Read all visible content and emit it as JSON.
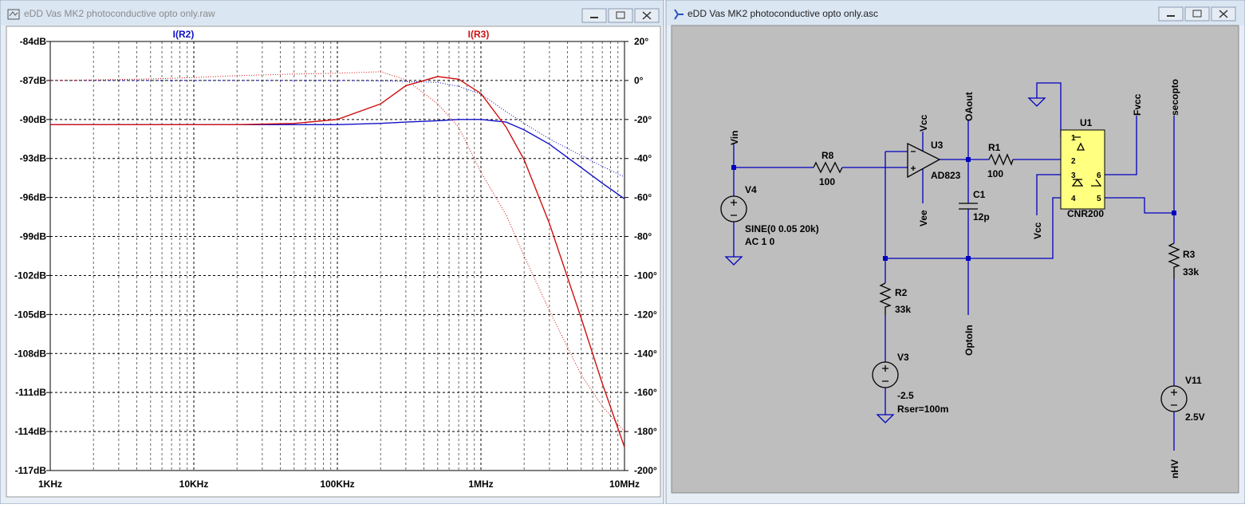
{
  "windows": {
    "plot_title": "eDD Vas MK2 photoconductive opto only.raw",
    "schematic_title": "eDD Vas MK2 photoconductive opto only.asc"
  },
  "chart_data": {
    "type": "line",
    "log_x": true,
    "grid": true,
    "x": [
      1000,
      2000,
      5000,
      10000,
      20000,
      50000,
      100000,
      200000,
      300000,
      500000,
      700000,
      1000000,
      1500000,
      2000000,
      3000000,
      5000000,
      7000000,
      10000000
    ],
    "xlim": [
      1000,
      10000000
    ],
    "xticks": [
      {
        "value": 1000,
        "label": "1KHz"
      },
      {
        "value": 10000,
        "label": "10KHz"
      },
      {
        "value": 100000,
        "label": "100KHz"
      },
      {
        "value": 1000000,
        "label": "1MHz"
      },
      {
        "value": 10000000,
        "label": "10MHz"
      }
    ],
    "ylim": [
      -117,
      -84
    ],
    "yticks": [
      {
        "value": -84,
        "label": "-84dB"
      },
      {
        "value": -87,
        "label": "-87dB"
      },
      {
        "value": -90,
        "label": "-90dB"
      },
      {
        "value": -93,
        "label": "-93dB"
      },
      {
        "value": -96,
        "label": "-96dB"
      },
      {
        "value": -99,
        "label": "-99dB"
      },
      {
        "value": -102,
        "label": "-102dB"
      },
      {
        "value": -105,
        "label": "-105dB"
      },
      {
        "value": -108,
        "label": "-108dB"
      },
      {
        "value": -111,
        "label": "-111dB"
      },
      {
        "value": -114,
        "label": "-114dB"
      },
      {
        "value": -117,
        "label": "-117dB"
      }
    ],
    "y2lim": [
      -200,
      20
    ],
    "y2ticks": [
      {
        "value": 20,
        "label": "20°"
      },
      {
        "value": 0,
        "label": "0°"
      },
      {
        "value": -20,
        "label": "-20°"
      },
      {
        "value": -40,
        "label": "-40°"
      },
      {
        "value": -60,
        "label": "-60°"
      },
      {
        "value": -80,
        "label": "-80°"
      },
      {
        "value": -100,
        "label": "-100°"
      },
      {
        "value": -120,
        "label": "-120°"
      },
      {
        "value": -140,
        "label": "-140°"
      },
      {
        "value": -160,
        "label": "-160°"
      },
      {
        "value": -180,
        "label": "-180°"
      },
      {
        "value": -200,
        "label": "-200°"
      }
    ],
    "series": [
      {
        "name": "I(R2)",
        "color": "#1010c8",
        "values": [
          -90.4,
          -90.4,
          -90.4,
          -90.4,
          -90.4,
          -90.4,
          -90.4,
          -90.3,
          -90.2,
          -90.1,
          -90.0,
          -90.0,
          -90.2,
          -90.8,
          -91.9,
          -93.7,
          -94.9,
          -96.1
        ]
      },
      {
        "name": "I(R3)",
        "color": "#d01010",
        "values": [
          -90.4,
          -90.4,
          -90.4,
          -90.4,
          -90.4,
          -90.3,
          -90.0,
          -88.8,
          -87.4,
          -86.7,
          -86.9,
          -88.0,
          -90.6,
          -93.1,
          -98.0,
          -105.3,
          -110.3,
          -115.2
        ]
      },
      {
        "color": "#1010c8",
        "axis": "y2",
        "style": "dotted",
        "values": [
          0,
          0,
          0,
          0,
          0,
          0,
          0,
          -0.2,
          -0.5,
          -1,
          -3,
          -7,
          -16,
          -22,
          -30,
          -38.5,
          -44,
          -49.5
        ]
      },
      {
        "color": "#d01010",
        "axis": "y2",
        "style": "dotted",
        "values": [
          0,
          0.3,
          0.8,
          1.5,
          2.5,
          3.3,
          3.7,
          4.5,
          0.4,
          -12,
          -24,
          -47,
          -69,
          -90,
          -118,
          -151,
          -167,
          -180
        ]
      }
    ]
  },
  "schematic": {
    "nets": [
      "Vin",
      "Vcc",
      "Vee",
      "OAout",
      "Fvcc",
      "secopto",
      "Vcc",
      "OptoIn",
      "nHV"
    ],
    "components": [
      {
        "name": "R8",
        "value": "100"
      },
      {
        "name": "V4",
        "value": "SINE(0 0.05 20k)",
        "extra": "AC 1 0"
      },
      {
        "name": "U3",
        "value": "AD823"
      },
      {
        "name": "R1",
        "value": "100"
      },
      {
        "name": "C1",
        "value": "12p"
      },
      {
        "name": "U1",
        "value": "CNR200"
      },
      {
        "name": "R2",
        "value": "33k"
      },
      {
        "name": "V3",
        "value": "-2.5",
        "extra": "Rser=100m"
      },
      {
        "name": "R3",
        "value": "33k"
      },
      {
        "name": "V11",
        "value": "2.5V"
      }
    ],
    "pins": [
      "1",
      "2",
      "3",
      "4",
      "6",
      "5"
    ]
  }
}
